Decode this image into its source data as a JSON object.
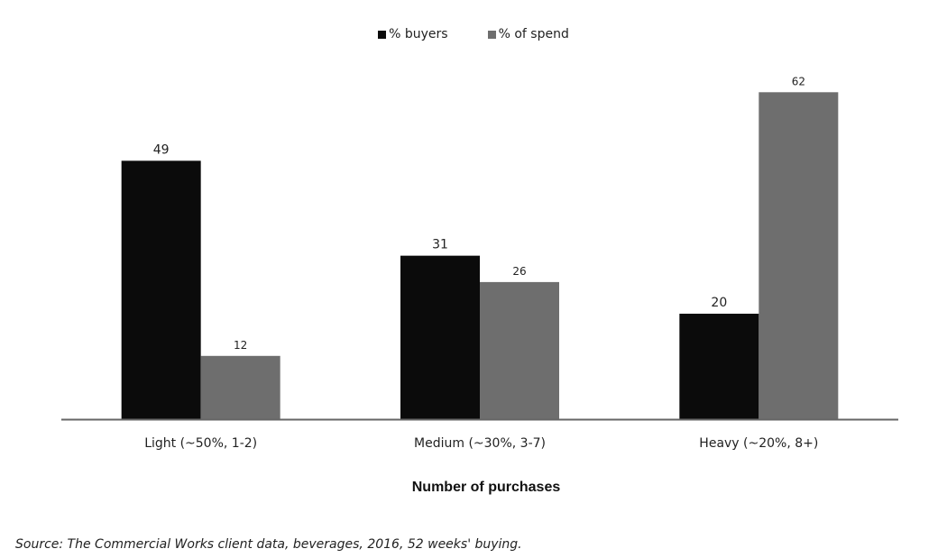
{
  "chart_data": {
    "type": "bar",
    "categories": [
      "Light (~50%, 1-2)",
      "Medium (~30%, 3-7)",
      "Heavy (~20%, 8+)"
    ],
    "series": [
      {
        "name": "% buyers",
        "values": [
          49,
          31,
          20
        ],
        "color": "#0b0b0b"
      },
      {
        "name": "% of spend",
        "values": [
          12,
          26,
          62
        ],
        "color": "#6e6e6e"
      }
    ],
    "title": "",
    "xlabel": "Number of purchases",
    "ylabel": "",
    "ylim": [
      0,
      66
    ],
    "legend_position": "top-center",
    "grid": false,
    "data_labels": true
  },
  "source_note": "Source: The Commercial Works client data, beverages, 2016, 52 weeks' buying."
}
